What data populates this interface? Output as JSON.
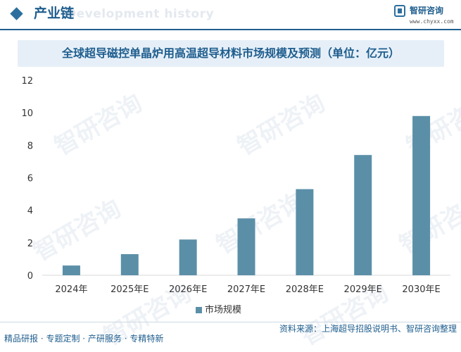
{
  "header": {
    "title": "产业链",
    "subtitle": "Development history",
    "logo_name": "智研咨询",
    "logo_url": "www.chyxx.com"
  },
  "colors": {
    "brand": "#1f5e8e",
    "bar": "#5b8fa8",
    "title_bg": "#e6eff8"
  },
  "chart_data": {
    "type": "bar",
    "title": "全球超导磁控单晶炉用高温超导材料市场规模及预测（单位：亿元）",
    "categories": [
      "2024年",
      "2025年E",
      "2026年E",
      "2027年E",
      "2028年E",
      "2029年E",
      "2030年E"
    ],
    "series": [
      {
        "name": "市场规模",
        "values": [
          0.6,
          1.3,
          2.2,
          3.5,
          5.3,
          7.4,
          9.8
        ]
      }
    ],
    "ylim": [
      0,
      12
    ],
    "yticks": [
      0,
      2,
      4,
      6,
      8,
      10,
      12
    ],
    "grid": false,
    "legend": "bottom"
  },
  "footer": {
    "left": "精品研报 · 专题定制 · 产研服务 · 专精特新",
    "right": "资料来源：上海超导招股说明书、智研咨询整理"
  },
  "watermark": "智研咨询"
}
